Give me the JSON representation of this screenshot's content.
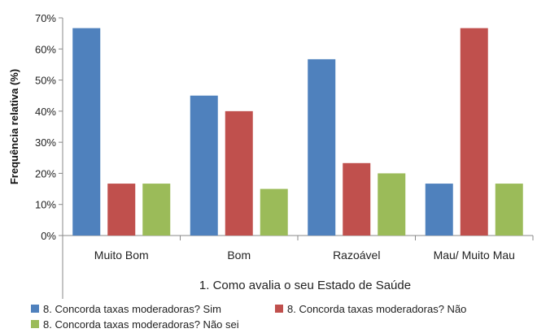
{
  "chart_data": {
    "type": "bar",
    "xlabel": "1. Como avalia o seu Estado de Saúde",
    "ylabel": "Frequência relativa (%)",
    "categories": [
      "Muito Bom",
      "Bom",
      "Razoável",
      "Mau/ Muito Mau"
    ],
    "yticks": [
      "0%",
      "10%",
      "20%",
      "30%",
      "40%",
      "50%",
      "60%",
      "70%"
    ],
    "ylim": [
      0,
      70
    ],
    "grid": false,
    "legend_position": "bottom",
    "series": [
      {
        "name": "8. Concorda taxas moderadoras? Sim",
        "color": "#4F81BD",
        "values": [
          66.7,
          45.0,
          56.7,
          16.7
        ]
      },
      {
        "name": "8. Concorda taxas moderadoras? Não",
        "color": "#C0504D",
        "values": [
          16.7,
          40.0,
          23.3,
          66.7
        ]
      },
      {
        "name": "8. Concorda taxas moderadoras? Não sei",
        "color": "#9BBB59",
        "values": [
          16.7,
          15.0,
          20.0,
          16.7
        ]
      }
    ]
  }
}
